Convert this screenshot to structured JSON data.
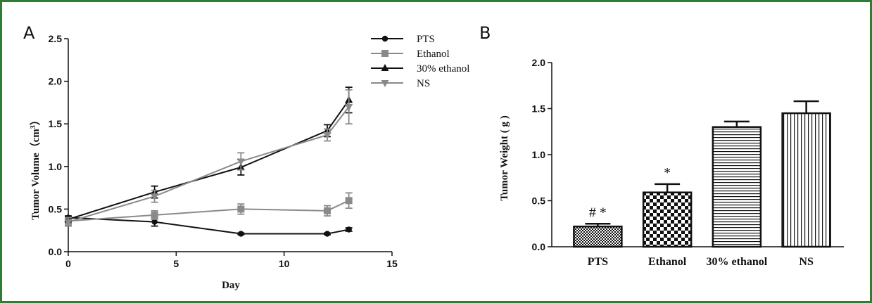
{
  "panels": {
    "a_label": "A",
    "b_label": "B"
  },
  "chart_data": [
    {
      "type": "line",
      "xlabel": "Day",
      "ylabel_main": "Tumor Volume（cm",
      "ylabel_sup": "3",
      "ylabel_close": "）",
      "xlim": [
        0,
        15
      ],
      "ylim": [
        0,
        2.5
      ],
      "xticks": [
        "0",
        "5",
        "10",
        "15"
      ],
      "yticks": [
        "0.0",
        "0.5",
        "1.0",
        "1.5",
        "2.0",
        "2.5"
      ],
      "x": [
        0,
        4,
        8,
        12,
        13
      ],
      "legend_position": "top-right",
      "series": [
        {
          "name": "PTS",
          "marker": "circle",
          "color": "#111111",
          "values": [
            0.4,
            0.35,
            0.21,
            0.21,
            0.26
          ],
          "errors": [
            0.02,
            0.05,
            0.01,
            0.01,
            0.02
          ]
        },
        {
          "name": "Ethanol",
          "marker": "square",
          "color": "#8a8a8a",
          "values": [
            0.36,
            0.43,
            0.5,
            0.48,
            0.6
          ],
          "errors": [
            0.05,
            0.05,
            0.06,
            0.06,
            0.09
          ]
        },
        {
          "name": "30% ethanol",
          "marker": "triangle-up",
          "color": "#111111",
          "values": [
            0.38,
            0.7,
            0.99,
            1.42,
            1.78
          ],
          "errors": [
            0.03,
            0.07,
            0.09,
            0.07,
            0.15
          ]
        },
        {
          "name": "NS",
          "marker": "triangle-down",
          "color": "#8a8a8a",
          "values": [
            0.35,
            0.65,
            1.06,
            1.37,
            1.7
          ],
          "errors": [
            0.05,
            0.07,
            0.1,
            0.07,
            0.2
          ]
        }
      ]
    },
    {
      "type": "bar",
      "ylabel": "Tumor Weight ( g )",
      "ylim": [
        0,
        2.0
      ],
      "yticks": [
        "0.0",
        "0.5",
        "1.0",
        "1.5",
        "2.0"
      ],
      "categories": [
        "PTS",
        "Ethanol",
        "30% ethanol",
        "NS"
      ],
      "values": [
        0.22,
        0.59,
        1.3,
        1.45
      ],
      "errors": [
        0.03,
        0.09,
        0.06,
        0.13
      ],
      "fills": [
        "dense-check",
        "checker",
        "horizontal-lines",
        "vertical-lines"
      ],
      "annotations": [
        "# *",
        "*",
        "",
        ""
      ]
    }
  ]
}
